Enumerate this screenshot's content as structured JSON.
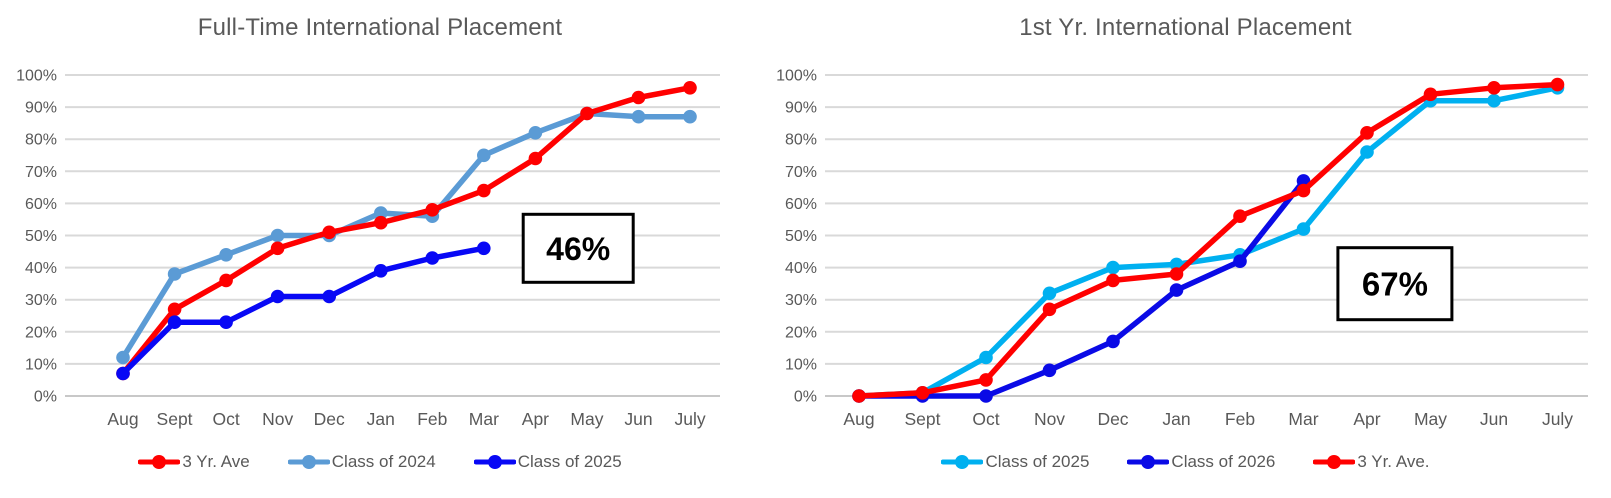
{
  "page": {
    "background": "#FFFFFF",
    "title_color": "#595959",
    "axis_label_color": "#595959",
    "gridline_color": "#D9D9D9",
    "baseline_color": "#C8C8C8",
    "annotation_border_color": "#000000",
    "annotation_text_color": "#000000",
    "annotation_fill": "#FFFFFF"
  },
  "chart_data": [
    {
      "type": "line",
      "title": "Full-Time International Placement",
      "categories": [
        "Aug",
        "Sept",
        "Oct",
        "Nov",
        "Dec",
        "Jan",
        "Feb",
        "Mar",
        "Apr",
        "May",
        "Jun",
        "July"
      ],
      "y_tick_labels": [
        "0%",
        "10%",
        "20%",
        "30%",
        "40%",
        "50%",
        "60%",
        "70%",
        "80%",
        "90%",
        "100%"
      ],
      "ylim": [
        0,
        100
      ],
      "grid": true,
      "legend_position": "bottom",
      "xlabel": "",
      "ylabel": "",
      "series": [
        {
          "name": "3 Yr. Ave",
          "color": "#FF0000",
          "values": [
            7,
            27,
            36,
            46,
            51,
            54,
            58,
            64,
            74,
            88,
            93,
            96
          ]
        },
        {
          "name": "Class of 2024",
          "color": "#5B9BD5",
          "values": [
            12,
            38,
            44,
            50,
            50,
            57,
            56,
            75,
            82,
            88,
            87,
            87
          ]
        },
        {
          "name": "Class of 2025",
          "color": "#0808F5",
          "values": [
            7,
            23,
            23,
            31,
            31,
            39,
            43,
            46,
            null,
            null,
            null,
            null
          ]
        }
      ],
      "annotation": {
        "text": "46%",
        "x_index": 8.83,
        "y_value": 46
      }
    },
    {
      "type": "line",
      "title": "1st Yr. International Placement",
      "categories": [
        "Aug",
        "Sept",
        "Oct",
        "Nov",
        "Dec",
        "Jan",
        "Feb",
        "Mar",
        "Apr",
        "May",
        "Jun",
        "July"
      ],
      "y_tick_labels": [
        "0%",
        "10%",
        "20%",
        "30%",
        "40%",
        "50%",
        "60%",
        "70%",
        "80%",
        "90%",
        "100%"
      ],
      "ylim": [
        0,
        100
      ],
      "grid": true,
      "legend_position": "bottom",
      "xlabel": "",
      "ylabel": "",
      "series": [
        {
          "name": "Class of 2025",
          "color": "#00B0F0",
          "values": [
            0,
            1,
            12,
            32,
            40,
            41,
            44,
            52,
            76,
            92,
            92,
            96
          ]
        },
        {
          "name": "Class of 2026",
          "color": "#0A0AE6",
          "values": [
            0,
            0,
            0,
            8,
            17,
            33,
            42,
            67,
            null,
            null,
            null,
            null
          ]
        },
        {
          "name": "3 Yr. Ave.",
          "color": "#FF0000",
          "values": [
            0,
            1,
            5,
            27,
            36,
            38,
            56,
            64,
            82,
            94,
            96,
            97
          ]
        }
      ],
      "annotation": {
        "text": "67%",
        "x_index": 8.44,
        "y_value": 35
      }
    }
  ]
}
